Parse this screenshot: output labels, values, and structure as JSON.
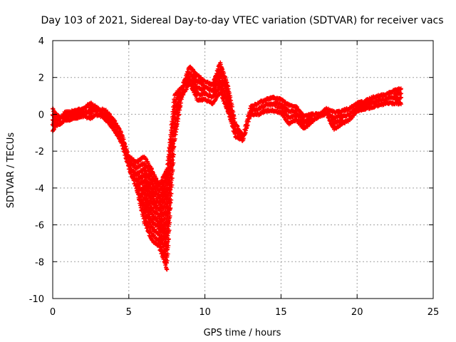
{
  "chart_data": {
    "type": "scatter",
    "title": "Day 103 of 2021, Sidereal Day-to-day VTEC variation (SDTVAR) for receiver vacs",
    "xlabel": "GPS time / hours",
    "ylabel": "SDTVAR / TECUs",
    "xlim": [
      0,
      25
    ],
    "ylim": [
      -10,
      4
    ],
    "x_ticks": [
      0,
      5,
      10,
      15,
      20,
      25
    ],
    "y_ticks": [
      4,
      2,
      0,
      -2,
      -4,
      -6,
      -8,
      -10
    ],
    "grid": true,
    "legend": "none",
    "marker": "+",
    "colors": {
      "series": "#ff0000",
      "grid": "#a0a0a0",
      "axis": "#000000"
    },
    "series": [
      {
        "name": "vacs",
        "bands": [
          {
            "x": [
              0.0,
              0.2,
              0.5,
              0.8,
              1.0,
              1.5,
              2.0,
              2.5,
              3.0,
              3.5,
              4.0,
              4.5,
              5.0,
              5.5,
              6.0,
              6.5,
              7.0,
              7.5,
              8.0,
              8.5,
              9.0,
              9.5,
              10.0,
              10.5,
              11.0,
              11.5,
              12.0,
              12.5,
              13.0,
              13.5,
              14.0,
              14.5,
              15.0,
              15.5,
              16.0,
              16.5,
              17.0,
              17.5,
              18.0,
              18.5,
              19.0,
              19.5,
              20.0,
              20.5,
              21.0,
              21.5,
              22.0,
              22.5,
              22.9
            ],
            "y": [
              0.3,
              0.0,
              -0.2,
              0.1,
              0.1,
              0.2,
              0.3,
              0.6,
              0.3,
              0.2,
              -0.3,
              -1.0,
              -2.3,
              -2.6,
              -2.3,
              -3.0,
              -3.9,
              -3.0,
              1.0,
              1.5,
              2.6,
              2.1,
              1.8,
              1.6,
              2.8,
              1.6,
              -0.5,
              -1.2,
              0.4,
              0.6,
              0.8,
              0.9,
              0.8,
              0.5,
              0.4,
              -0.1,
              0.0,
              0.0,
              0.3,
              0.1,
              0.2,
              0.3,
              0.6,
              0.7,
              0.9,
              1.0,
              1.1,
              1.3,
              1.4
            ]
          },
          {
            "x": [
              0.0,
              0.2,
              0.5,
              0.8,
              1.0,
              1.5,
              2.0,
              2.5,
              3.0,
              3.5,
              4.0,
              4.5,
              5.0,
              5.5,
              6.0,
              6.5,
              7.0,
              7.5,
              8.0,
              8.5,
              9.0,
              9.5,
              10.0,
              10.5,
              11.0,
              11.5,
              12.0,
              12.5,
              13.0,
              13.5,
              14.0,
              14.5,
              15.0,
              15.5,
              16.0,
              16.5,
              17.0,
              17.5,
              18.0,
              18.5,
              19.0,
              19.5,
              20.0,
              20.5,
              21.0,
              21.5,
              22.0,
              22.5,
              22.9
            ],
            "y": [
              -0.9,
              -0.6,
              -0.5,
              -0.3,
              -0.3,
              -0.2,
              -0.1,
              -0.2,
              0.0,
              -0.3,
              -0.8,
              -1.5,
              -2.9,
              -4.0,
              -5.8,
              -6.8,
              -7.2,
              -8.4,
              -1.5,
              1.0,
              1.7,
              0.8,
              0.8,
              0.6,
              1.2,
              0.2,
              -1.2,
              -1.4,
              0.0,
              0.0,
              0.2,
              0.2,
              0.1,
              -0.5,
              -0.3,
              -0.8,
              -0.4,
              -0.1,
              0.0,
              -0.8,
              -0.5,
              -0.3,
              0.2,
              0.3,
              0.4,
              0.5,
              0.6,
              0.6,
              0.6
            ]
          }
        ]
      }
    ]
  }
}
